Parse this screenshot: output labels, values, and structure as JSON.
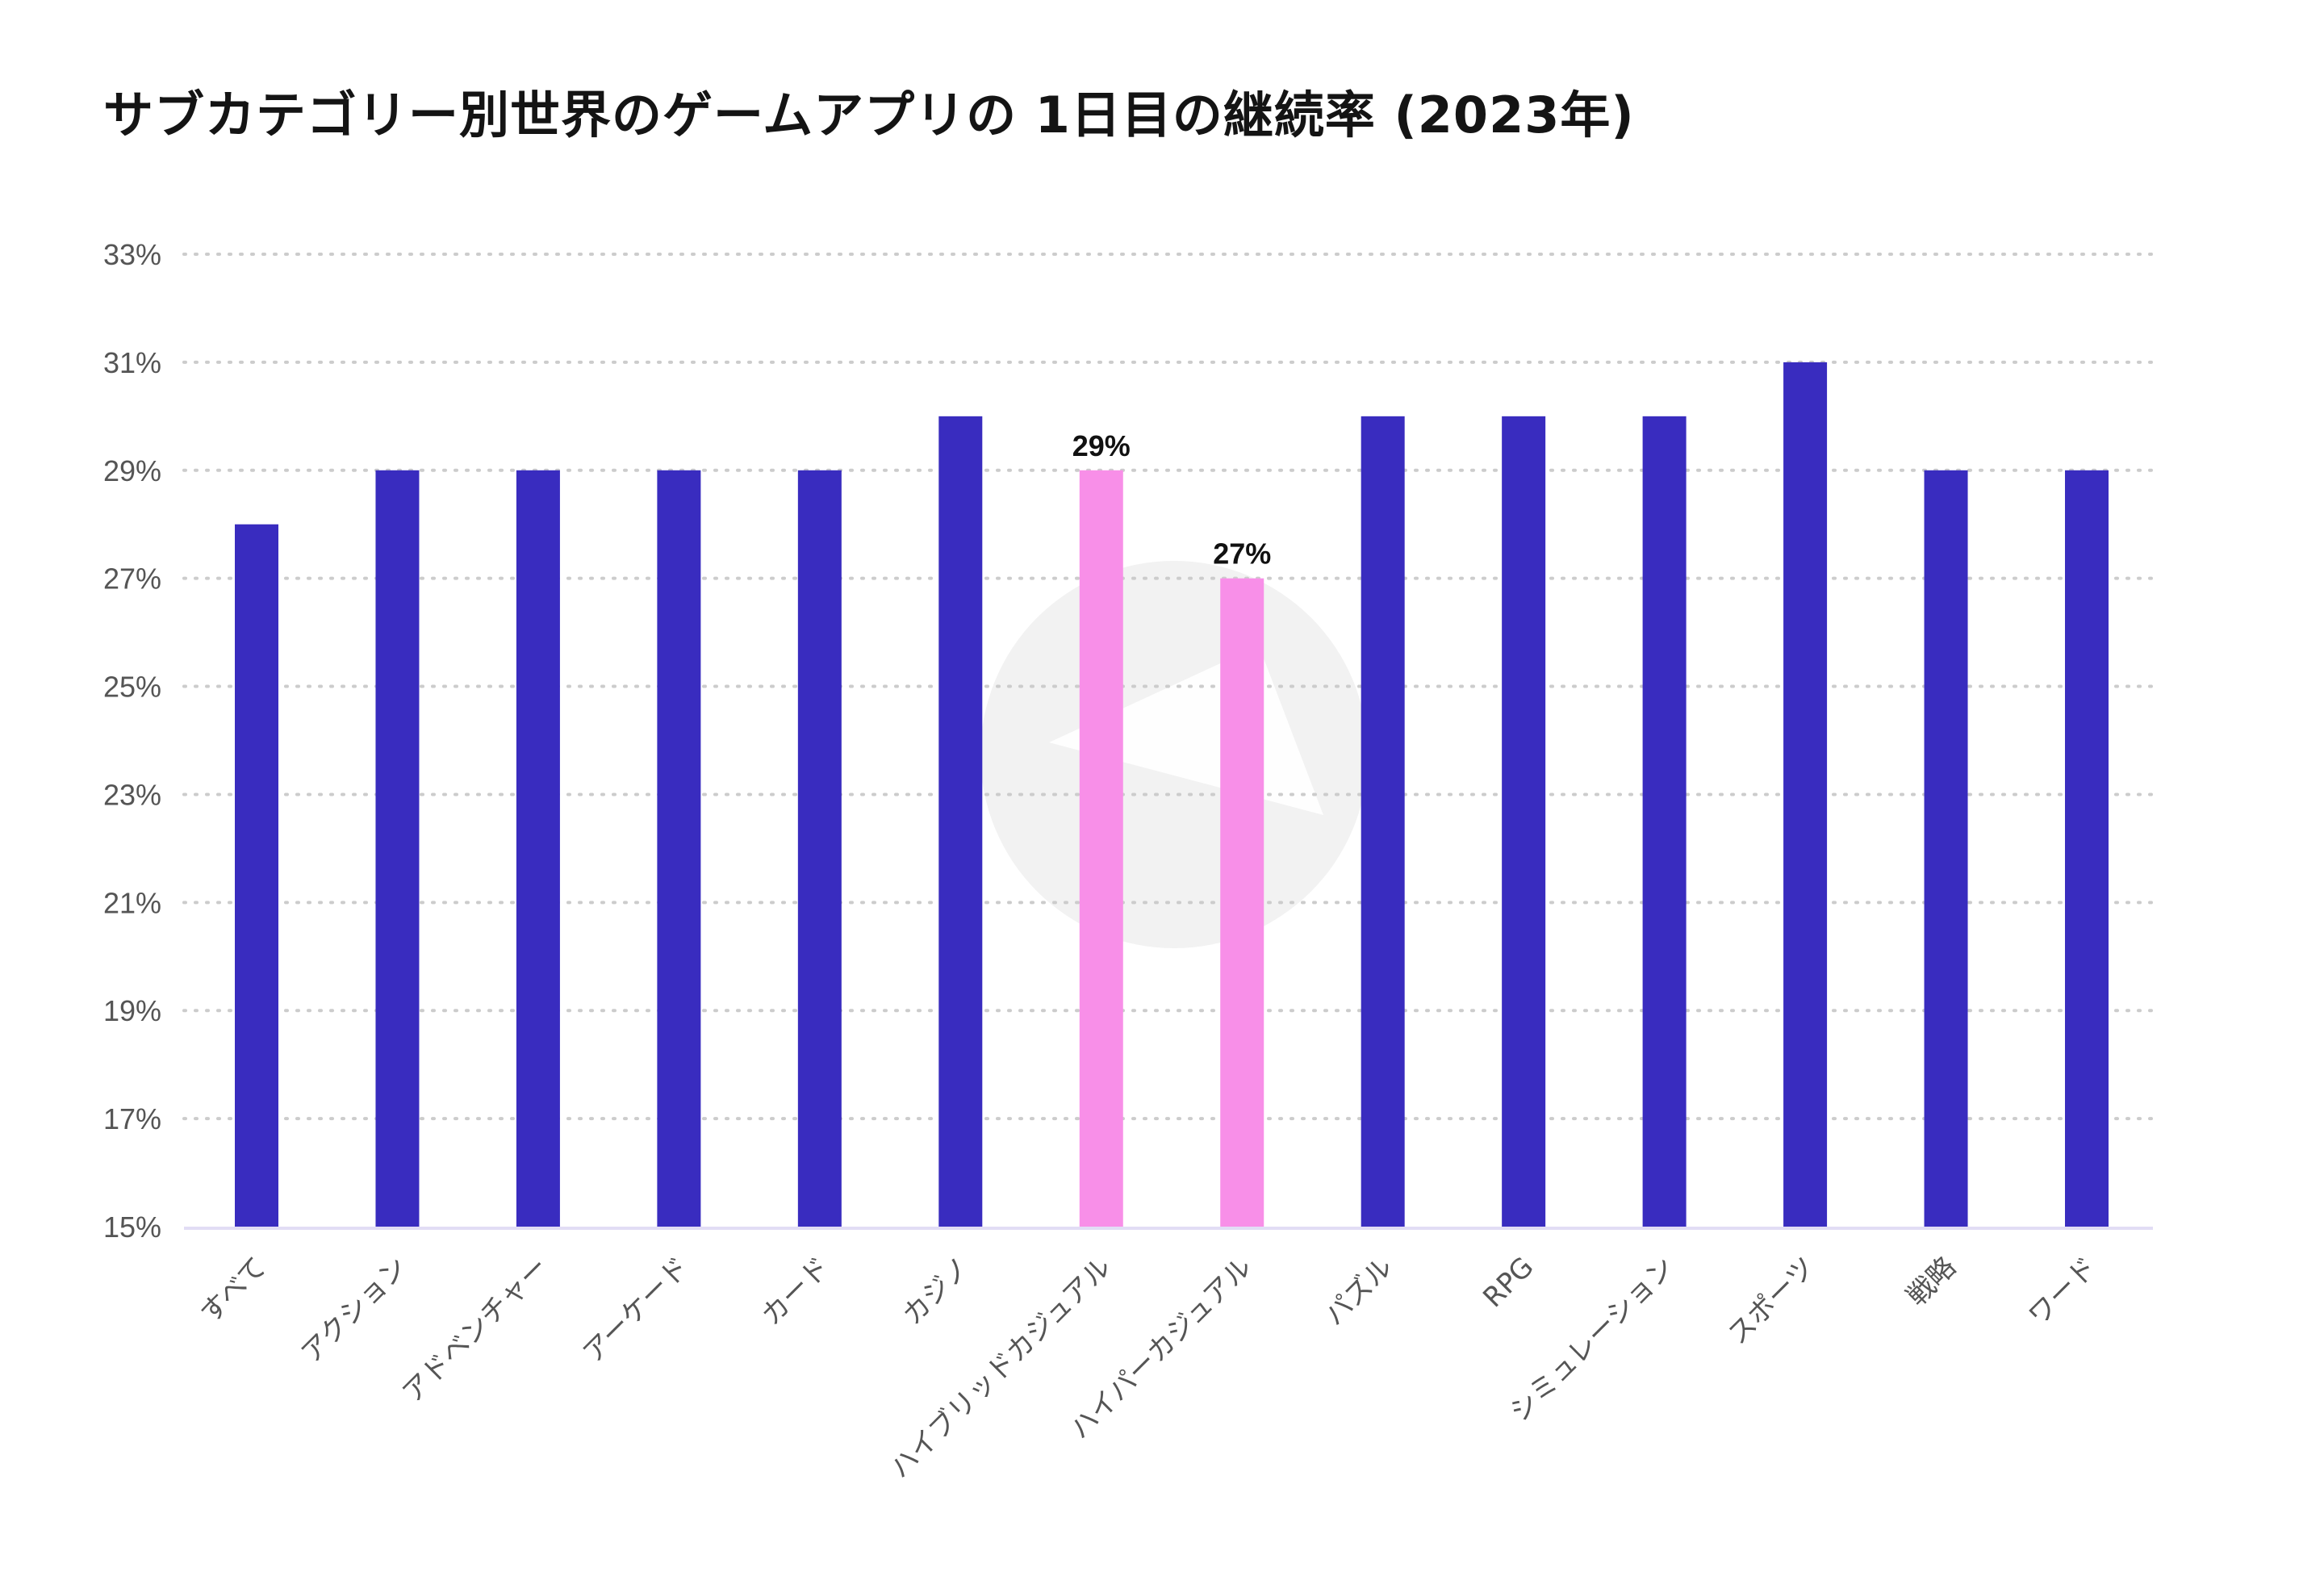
{
  "chart_data": {
    "type": "bar",
    "title": "サブカテゴリー別世界のゲームアプリの 1日目の継続率 (2023年)",
    "xlabel": "",
    "ylabel": "",
    "ylim": [
      15,
      33
    ],
    "y_ticks": [
      "15%",
      "17%",
      "19%",
      "21%",
      "23%",
      "25%",
      "27%",
      "29%",
      "31%",
      "33%"
    ],
    "y_tick_values": [
      15,
      17,
      19,
      21,
      23,
      25,
      27,
      29,
      31,
      33
    ],
    "categories": [
      "すべて",
      "アクション",
      "アドベンチャー",
      "アーケード",
      "カード",
      "カジノ",
      "ハイブリッドカジュアル",
      "ハイパーカジュアル",
      "パズル",
      "RPG",
      "シミュレーション",
      "スポーツ",
      "戦略",
      "ワード"
    ],
    "values": [
      28,
      29,
      29,
      29,
      29,
      30,
      29,
      27,
      30,
      30,
      30,
      31,
      29,
      29
    ],
    "highlighted": [
      false,
      false,
      false,
      false,
      false,
      false,
      true,
      true,
      false,
      false,
      false,
      false,
      false,
      false
    ],
    "data_labels": [
      "",
      "",
      "",
      "",
      "",
      "",
      "29%",
      "27%",
      "",
      "",
      "",
      "",
      "",
      ""
    ],
    "grid": true,
    "legend": "none",
    "colors": {
      "bar": "#392CBF",
      "highlight": "#F88FE8",
      "grid": "#CCCCCC",
      "axis": "#E2DDF5",
      "watermark": "#F2F2F2"
    }
  }
}
